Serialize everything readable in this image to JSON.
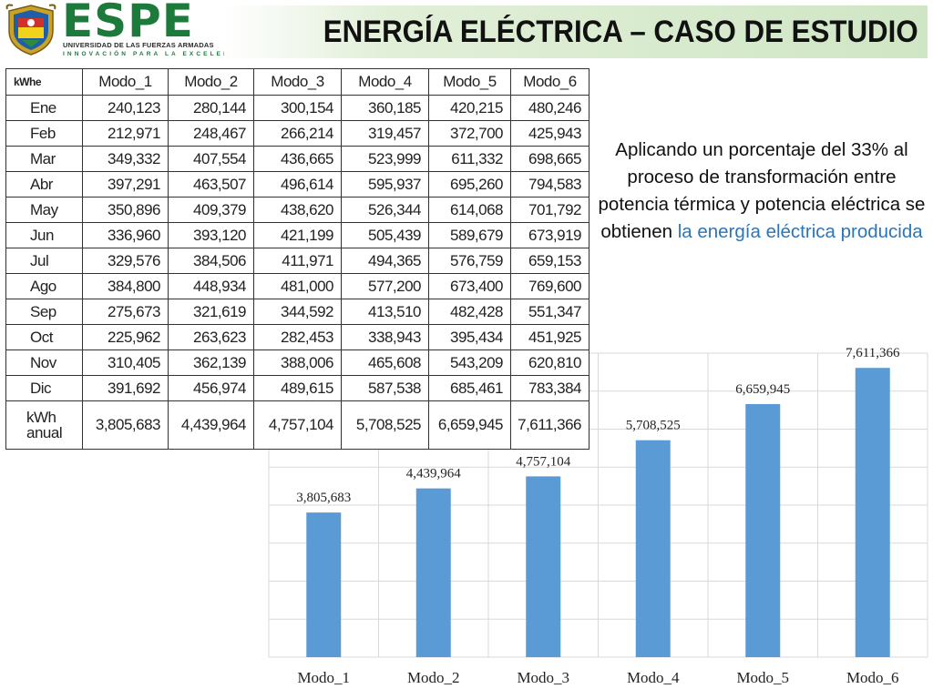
{
  "header": {
    "logo_word": "ESPE",
    "logo_subtitle": "UNIVERSIDAD DE LAS FUERZAS ARMADAS",
    "logo_motto": "INNOVACIÓN PARA LA EXCELENCIA",
    "title": "ENERGÍA ELÉCTRICA – CASO DE ESTUDIO"
  },
  "table": {
    "corner": "kWhe",
    "columns": [
      "Modo_1",
      "Modo_2",
      "Modo_3",
      "Modo_4",
      "Modo_5",
      "Modo_6"
    ],
    "rows": [
      {
        "label": "Ene",
        "values": [
          "240,123",
          "280,144",
          "300,154",
          "360,185",
          "420,215",
          "480,246"
        ]
      },
      {
        "label": "Feb",
        "values": [
          "212,971",
          "248,467",
          "266,214",
          "319,457",
          "372,700",
          "425,943"
        ]
      },
      {
        "label": "Mar",
        "values": [
          "349,332",
          "407,554",
          "436,665",
          "523,999",
          "611,332",
          "698,665"
        ]
      },
      {
        "label": "Abr",
        "values": [
          "397,291",
          "463,507",
          "496,614",
          "595,937",
          "695,260",
          "794,583"
        ]
      },
      {
        "label": "May",
        "values": [
          "350,896",
          "409,379",
          "438,620",
          "526,344",
          "614,068",
          "701,792"
        ]
      },
      {
        "label": "Jun",
        "values": [
          "336,960",
          "393,120",
          "421,199",
          "505,439",
          "589,679",
          "673,919"
        ]
      },
      {
        "label": "Jul",
        "values": [
          "329,576",
          "384,506",
          "411,971",
          "494,365",
          "576,759",
          "659,153"
        ]
      },
      {
        "label": "Ago",
        "values": [
          "384,800",
          "448,934",
          "481,000",
          "577,200",
          "673,400",
          "769,600"
        ]
      },
      {
        "label": "Sep",
        "values": [
          "275,673",
          "321,619",
          "344,592",
          "413,510",
          "482,428",
          "551,347"
        ]
      },
      {
        "label": "Oct",
        "values": [
          "225,962",
          "263,623",
          "282,453",
          "338,943",
          "395,434",
          "451,925"
        ]
      },
      {
        "label": "Nov",
        "values": [
          "310,405",
          "362,139",
          "388,006",
          "465,608",
          "543,209",
          "620,810"
        ]
      },
      {
        "label": "Dic",
        "values": [
          "391,692",
          "456,974",
          "489,615",
          "587,538",
          "685,461",
          "783,384"
        ]
      }
    ],
    "total": {
      "label_line1": "kWh",
      "label_line2": "anual",
      "values": [
        "3,805,683",
        "4,439,964",
        "4,757,104",
        "5,708,525",
        "6,659,945",
        "7,611,366"
      ]
    }
  },
  "description": {
    "text": "Aplicando un porcentaje del 33% al proceso de transformación entre potencia térmica y potencia eléctrica se obtienen ",
    "highlight": "la energía eléctrica producida"
  },
  "colors": {
    "bar": "#5b9bd5",
    "highlight": "#2e75b6",
    "logo_green": "#1c7a3a"
  },
  "chart_data": {
    "type": "bar",
    "categories": [
      "Modo_1",
      "Modo_2",
      "Modo_3",
      "Modo_4",
      "Modo_5",
      "Modo_6"
    ],
    "values": [
      3805683,
      4439964,
      4757104,
      5708525,
      6659945,
      7611366
    ],
    "data_labels": [
      "3,805,683",
      "4,439,964",
      "4,757,104",
      "5,708,525",
      "6,659,945",
      "7,611,366"
    ],
    "ylim": [
      0,
      8000000
    ],
    "grid": true
  }
}
